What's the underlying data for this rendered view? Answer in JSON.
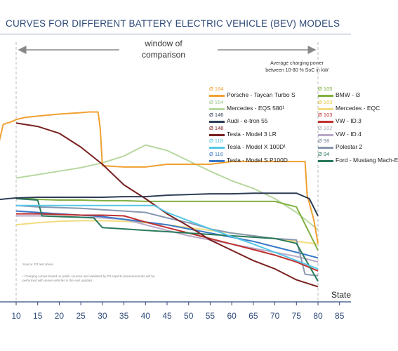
{
  "title": "CURVES FOR DIFFERENT BATTERY ELECTRIC VEHICLE (BEV) MODELS",
  "window_label": [
    "window of",
    "comparison"
  ],
  "avg_note": [
    "Average charging power",
    "between 10-80 % SoC in kW"
  ],
  "source": "Source: P3 test drives",
  "footnote": "¹ Charging curves based on public sources and validated by P3 experts (measurements will be performed with series vehicles in the next update)",
  "chart_data": {
    "type": "line",
    "xlabel": "State",
    "xlim": [
      5,
      90
    ],
    "ylim": [
      0,
      300
    ],
    "x_ticks": [
      10,
      15,
      20,
      25,
      30,
      35,
      40,
      45,
      50,
      55,
      60,
      65,
      70,
      75,
      80,
      85
    ],
    "grid": false,
    "legend": "right",
    "window": [
      10,
      80
    ],
    "series": [
      {
        "name": "Porsche - Taycan Turbo S",
        "avg": "Ø 184",
        "color": "#f0a030",
        "avg_color": "#f0a030",
        "x": [
          5,
          7,
          9,
          10,
          12,
          15,
          20,
          25,
          27,
          28,
          29,
          29.5,
          30,
          35,
          40,
          45,
          55,
          60,
          65,
          70,
          75,
          77,
          77.5,
          79,
          80
        ],
        "y": [
          205,
          258,
          262,
          265,
          268,
          270,
          273,
          275,
          276,
          276,
          276,
          252,
          198,
          196,
          196,
          200,
          200,
          204,
          204,
          204,
          204,
          204,
          155,
          120,
          85
        ]
      },
      {
        "name": "Mercedes - EQS 580¹",
        "avg": "Ø 164",
        "color": "#b8d8a0",
        "avg_color": "#9cc48a",
        "x": [
          10,
          15,
          20,
          25,
          30,
          35,
          40,
          45,
          50,
          55,
          60,
          65,
          70,
          75,
          80
        ],
        "y": [
          180,
          185,
          190,
          195,
          202,
          212,
          228,
          220,
          205,
          190,
          176,
          165,
          150,
          130,
          105
        ]
      },
      {
        "name": "Audi - e-tron 55",
        "avg": "Ø 146",
        "color": "#2e3d55",
        "avg_color": "#2e3d55",
        "x": [
          5,
          8,
          10,
          15,
          20,
          25,
          30,
          35,
          40,
          45,
          50,
          55,
          60,
          65,
          70,
          75,
          78,
          80
        ],
        "y": [
          148,
          150,
          151,
          152,
          152,
          152,
          152,
          153,
          153,
          155,
          156,
          157,
          157,
          158,
          158,
          158,
          150,
          125
        ]
      },
      {
        "name": "Tesla - Model 3 LR",
        "avg": "Ø 146",
        "color": "#7a2020",
        "avg_color": "#7a2020",
        "x": [
          10,
          15,
          20,
          25,
          30,
          35,
          40,
          45,
          50,
          55,
          60,
          65,
          70,
          75,
          80
        ],
        "y": [
          260,
          255,
          245,
          225,
          200,
          170,
          150,
          128,
          110,
          90,
          75,
          60,
          48,
          32,
          22
        ]
      },
      {
        "name": "Tesla - Model X 100D¹",
        "avg": "Ø 118",
        "color": "#55c8e8",
        "avg_color": "#55c8e8",
        "x": [
          10,
          15,
          20,
          25,
          30,
          35,
          40,
          42,
          45,
          50,
          55,
          60,
          65,
          70,
          75,
          80
        ],
        "y": [
          140,
          140,
          140,
          140,
          140,
          140,
          140,
          140,
          130,
          118,
          106,
          95,
          84,
          72,
          60,
          48
        ]
      },
      {
        "name": "Tesla - Model S P100D",
        "avg": "Ø 116",
        "color": "#3a78c8",
        "avg_color": "#3a78c8",
        "x": [
          10,
          15,
          20,
          25,
          30,
          35,
          40,
          45,
          50,
          55,
          60,
          65,
          70,
          75,
          80
        ],
        "y": [
          132,
          130,
          128,
          126,
          124,
          120,
          116,
          112,
          106,
          100,
          94,
          88,
          80,
          72,
          64
        ]
      },
      {
        "name": "BMW - i3",
        "avg": "Ø 105",
        "color": "#80b040",
        "avg_color": "#80b040",
        "x": [
          10,
          13,
          15,
          20,
          25,
          30,
          35,
          40,
          45,
          50,
          55,
          60,
          65,
          70,
          75,
          80
        ],
        "y": [
          150,
          150,
          149,
          148,
          148,
          147,
          147,
          146,
          146,
          146,
          146,
          146,
          146,
          146,
          138,
          75
        ]
      },
      {
        "name": "Mercedes - EQC",
        "avg": "Ø 103",
        "color": "#f2dc80",
        "avg_color": "#e8c840",
        "x": [
          10,
          15,
          20,
          25,
          30,
          35,
          40,
          45,
          50,
          55,
          60,
          65,
          70,
          75,
          80
        ],
        "y": [
          112,
          115,
          117,
          118,
          118,
          117,
          115,
          112,
          108,
          104,
          100,
          96,
          92,
          88,
          84
        ]
      },
      {
        "name": "VW - ID.3",
        "avg": "Ø 103",
        "color": "#c03030",
        "avg_color": "#c03030",
        "x": [
          10,
          15,
          20,
          25,
          30,
          35,
          40,
          45,
          50,
          55,
          60,
          65,
          70,
          75,
          80
        ],
        "y": [
          128,
          128,
          127,
          126,
          126,
          125,
          116,
          108,
          100,
          92,
          84,
          76,
          68,
          58,
          45
        ]
      },
      {
        "name": "VW - ID.4",
        "avg": "Ø 102",
        "color": "#b8a8c8",
        "avg_color": "#a8a8b8",
        "x": [
          10,
          15,
          20,
          25,
          30,
          35,
          40,
          45,
          50,
          55,
          60,
          65,
          70,
          75,
          80
        ],
        "y": [
          125,
          125,
          124,
          123,
          122,
          120,
          112,
          104,
          96,
          90,
          84,
          78,
          72,
          66,
          58
        ]
      },
      {
        "name": "Polestar 2",
        "avg": "Ø 98",
        "color": "#8898b0",
        "avg_color": "#7888a0",
        "x": [
          10,
          15,
          20,
          25,
          30,
          35,
          40,
          45,
          50,
          55,
          60,
          65,
          70,
          75,
          77,
          80
        ],
        "y": [
          140,
          138,
          137,
          136,
          134,
          132,
          130,
          122,
          115,
          106,
          100,
          96,
          92,
          90,
          40,
          38
        ]
      },
      {
        "name": "Ford - Mustang Mach-E",
        "avg": "Ø 94",
        "color": "#2a7a5a",
        "avg_color": "#2a7a5a",
        "x": [
          10,
          15,
          16,
          20,
          25,
          28,
          30,
          35,
          40,
          45,
          50,
          55,
          60,
          65,
          70,
          75,
          80
        ],
        "y": [
          150,
          148,
          125,
          124,
          123,
          122,
          108,
          106,
          104,
          102,
          100,
          98,
          96,
          94,
          92,
          85,
          30
        ]
      }
    ]
  }
}
